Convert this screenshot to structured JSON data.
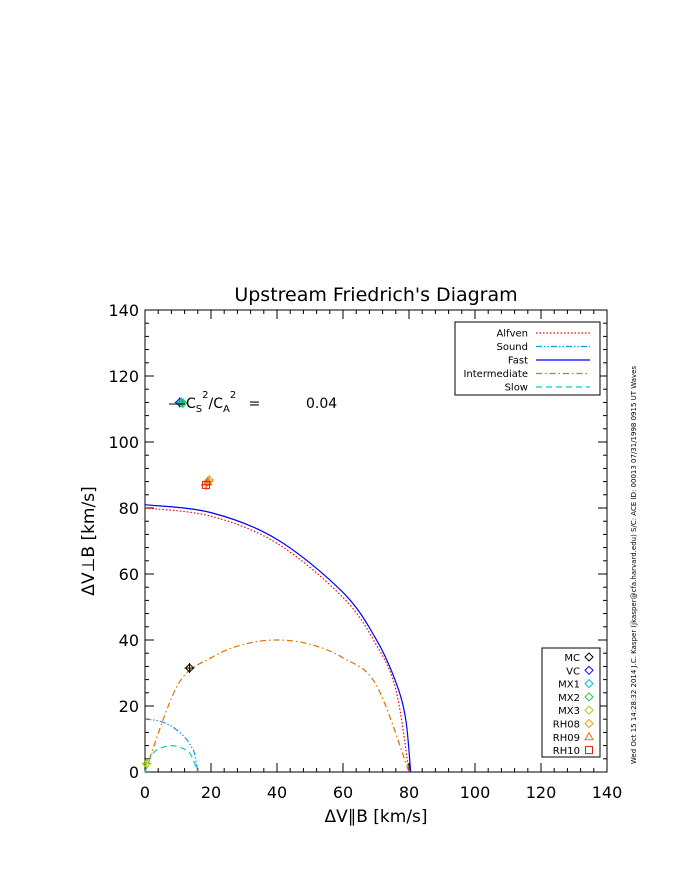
{
  "chart_data": {
    "type": "line",
    "title": "Upstream Friedrich's Diagram",
    "xlabel": "ΔV∥B [km/s]",
    "ylabel": "ΔV⊥B [km/s]",
    "xlim": [
      0,
      140
    ],
    "ylim": [
      0,
      140
    ],
    "x_ticks": [
      "0",
      "20",
      "40",
      "60",
      "80",
      "100",
      "120",
      "140"
    ],
    "y_ticks": [
      "0",
      "20",
      "40",
      "60",
      "80",
      "100",
      "120",
      "140"
    ],
    "annotation": {
      "label": "C_S^2/C_A^2 =",
      "value": "0.04"
    },
    "side_label": "Wed Oct 15 14:28:32 2014   J.C. Kasper (jkasper@cfa.harvard.edu)   S/C: ACE ID: 00013 07/31/1998  0915 UT Waves",
    "legend_position": "top-right",
    "series": [
      {
        "name": "Alfven",
        "color": "#ff0000",
        "style": "dotted",
        "points": [
          [
            0,
            80
          ],
          [
            20,
            77.5
          ],
          [
            40,
            69.3
          ],
          [
            60,
            52.9
          ],
          [
            70,
            38.7
          ],
          [
            76,
            25.0
          ],
          [
            80,
            0
          ]
        ]
      },
      {
        "name": "Sound",
        "color": "#00a0e6",
        "style": "dashdotdot",
        "points": [
          [
            0,
            16
          ],
          [
            4,
            15.5
          ],
          [
            8,
            13.9
          ],
          [
            12,
            10.6
          ],
          [
            14,
            7.7
          ],
          [
            15,
            5.6
          ],
          [
            16,
            0
          ]
        ]
      },
      {
        "name": "Fast",
        "color": "#0000ff",
        "style": "solid",
        "points": [
          [
            0,
            81
          ],
          [
            20,
            78.6
          ],
          [
            40,
            70.5
          ],
          [
            60,
            54.4
          ],
          [
            70,
            40.3
          ],
          [
            76,
            27.3
          ],
          [
            79,
            16
          ],
          [
            80.5,
            0
          ]
        ]
      },
      {
        "name": "Intermediate",
        "color": "#e07000",
        "style": "dashdot",
        "points": [
          [
            0,
            0
          ],
          [
            10,
            26.5
          ],
          [
            20,
            34.6
          ],
          [
            30,
            38.7
          ],
          [
            40,
            40
          ],
          [
            50,
            38.7
          ],
          [
            60,
            34.6
          ],
          [
            70,
            26.5
          ],
          [
            80,
            0
          ]
        ]
      },
      {
        "name": "Slow",
        "color": "#00d0c0",
        "style": "dashed",
        "points": [
          [
            0,
            0
          ],
          [
            2,
            5
          ],
          [
            4,
            6.9
          ],
          [
            8,
            8
          ],
          [
            12,
            6.9
          ],
          [
            14,
            5
          ],
          [
            16,
            0
          ]
        ]
      }
    ],
    "markers": [
      {
        "name": "MC",
        "color": "#000000",
        "shape": "diamond",
        "x": 13.5,
        "y": 31.5
      },
      {
        "name": "VC",
        "color": "#0000ff",
        "shape": "diamond",
        "x": 10.5,
        "y": 112
      },
      {
        "name": "MX1",
        "color": "#00c0e0",
        "shape": "diamond",
        "x": 11,
        "y": 112
      },
      {
        "name": "MX2",
        "color": "#20d040",
        "shape": "diamond",
        "x": 11.5,
        "y": 111.8
      },
      {
        "name": "MX3",
        "color": "#a0d000",
        "shape": "diamond",
        "x": 0.5,
        "y": 2.5
      },
      {
        "name": "RH08",
        "color": "#f0a000",
        "shape": "diamond",
        "x": 19.5,
        "y": 88.5
      },
      {
        "name": "RH09",
        "color": "#f07000",
        "shape": "triangle",
        "x": 19,
        "y": 88
      },
      {
        "name": "RH10",
        "color": "#e02000",
        "shape": "square",
        "x": 18.5,
        "y": 87
      }
    ]
  }
}
